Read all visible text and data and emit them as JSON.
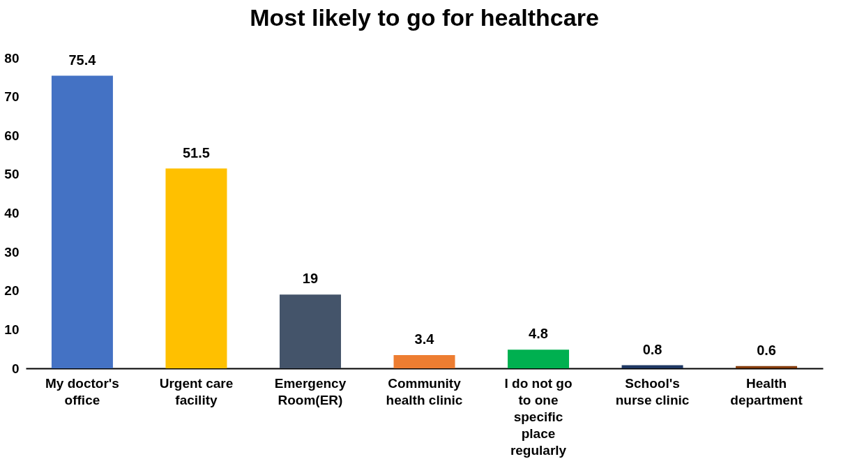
{
  "chart_data": {
    "type": "bar",
    "title": "Most likely to go for healthcare",
    "categories": [
      "My doctor's office",
      "Urgent care facility",
      "Emergency Room(ER)",
      "Community health clinic",
      "I do not go to one specific place regularly",
      "School's nurse clinic",
      "Health department"
    ],
    "values": [
      75.4,
      51.5,
      19,
      3.4,
      4.8,
      0.8,
      0.6
    ],
    "colors": [
      "#4472c4",
      "#ffc000",
      "#44546a",
      "#ed7d31",
      "#00b050",
      "#1f3864",
      "#843c0c"
    ],
    "ylim": [
      0,
      80
    ],
    "yticks": [
      0,
      10,
      20,
      30,
      40,
      50,
      60,
      70,
      80
    ],
    "grid": false,
    "data_labels": true
  }
}
